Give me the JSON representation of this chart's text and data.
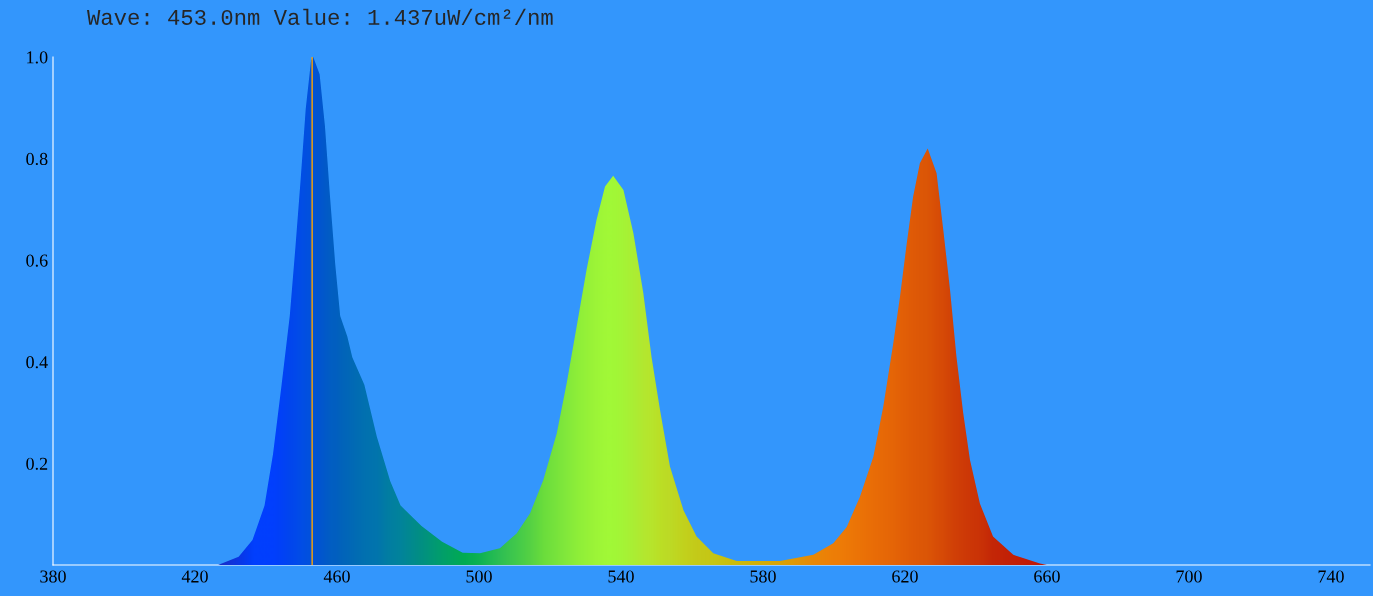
{
  "chart_data": {
    "type": "area",
    "title": "Wave: 453.0nm Value: 1.437uW/cm²/nm",
    "x": [
      426.5,
      432.3,
      436.2,
      439.6,
      442,
      444.4,
      446.7,
      448.3,
      449.8,
      451.2,
      452.7,
      453.3,
      455.1,
      456.6,
      458,
      459.5,
      460.9,
      462.9,
      464.3,
      467.7,
      471.2,
      475,
      477.9,
      483.8,
      489.6,
      495.4,
      500.3,
      505.9,
      510.6,
      514.4,
      518.1,
      521.9,
      524.7,
      527.5,
      530.3,
      533.1,
      535.5,
      537.8,
      540.7,
      543.5,
      546.3,
      548.6,
      551,
      553.8,
      557.6,
      561.3,
      566,
      572.6,
      584.8,
      594.2,
      599.8,
      603.6,
      607.3,
      611.1,
      613.9,
      616.7,
      618.6,
      620.5,
      622.3,
      624.2,
      626.4,
      628.9,
      630.8,
      632.7,
      634.5,
      636.4,
      638.3,
      641.1,
      644.8,
      650.5,
      658,
      660
    ],
    "series": [
      {
        "values": [
          0,
          0.016,
          0.049,
          0.117,
          0.219,
          0.355,
          0.49,
          0.626,
          0.762,
          0.898,
          0.993,
          1.0,
          0.966,
          0.864,
          0.728,
          0.592,
          0.49,
          0.45,
          0.409,
          0.355,
          0.253,
          0.165,
          0.117,
          0.077,
          0.046,
          0.024,
          0.023,
          0.033,
          0.062,
          0.102,
          0.167,
          0.259,
          0.358,
          0.469,
          0.581,
          0.679,
          0.745,
          0.766,
          0.738,
          0.653,
          0.535,
          0.41,
          0.305,
          0.194,
          0.108,
          0.056,
          0.023,
          0.008,
          0.008,
          0.02,
          0.043,
          0.075,
          0.134,
          0.213,
          0.312,
          0.436,
          0.528,
          0.633,
          0.725,
          0.791,
          0.82,
          0.771,
          0.659,
          0.541,
          0.41,
          0.299,
          0.207,
          0.121,
          0.056,
          0.02,
          0.003,
          0
        ],
        "colors": [
          "#1a2fc8",
          "#0a38e8",
          "#0040ff",
          "#0040ff",
          "#0040ff",
          "#0044f8",
          "#0048f0",
          "#004ced",
          "#0050e8",
          "#0052e2",
          "#0054dc",
          "#0056d8",
          "#0058d0",
          "#005cca",
          "#0060c4",
          "#0062c0",
          "#0066bb",
          "#006ab8",
          "#006db5",
          "#0074b0",
          "#0078ad",
          "#0083a0",
          "#00889a",
          "#009480",
          "#00a468",
          "#00b050",
          "#10b850",
          "#30c550",
          "#45d048",
          "#58d840",
          "#6ee438",
          "#7ceb38",
          "#88f037",
          "#92f535",
          "#9af834",
          "#a2fc33",
          "#a6ff33",
          "#a6ff33",
          "#aafb32",
          "#b0f530",
          "#b8ef2c",
          "#bcec28",
          "#c0e622",
          "#c3e020",
          "#c8d818",
          "#cad014",
          "#cccc10",
          "#d0c008",
          "#e0a800",
          "#f08c00",
          "#f58200",
          "#f47c00",
          "#f27600",
          "#f07000",
          "#ee6c00",
          "#ec6800",
          "#ea6400",
          "#e86000",
          "#e65c00",
          "#e45a00",
          "#e25800",
          "#de5000",
          "#dc4c00",
          "#d84600",
          "#d64000",
          "#d43c00",
          "#d23800",
          "#d03400",
          "#ca2800",
          "#c82000",
          "#c81800",
          "#c81800"
        ]
      }
    ],
    "xlim": [
      380,
      751
    ],
    "xticks": [
      380,
      420,
      460,
      500,
      540,
      580,
      620,
      660,
      700,
      740
    ],
    "ylim": [
      0,
      1
    ],
    "yticks": [
      0.2,
      0.4,
      0.6,
      0.8,
      {
        "value": 1,
        "label": "1.0"
      }
    ],
    "ref_lines": [
      {
        "axis": "x",
        "value": 453,
        "color": "#ffa500"
      }
    ],
    "grid": false
  }
}
